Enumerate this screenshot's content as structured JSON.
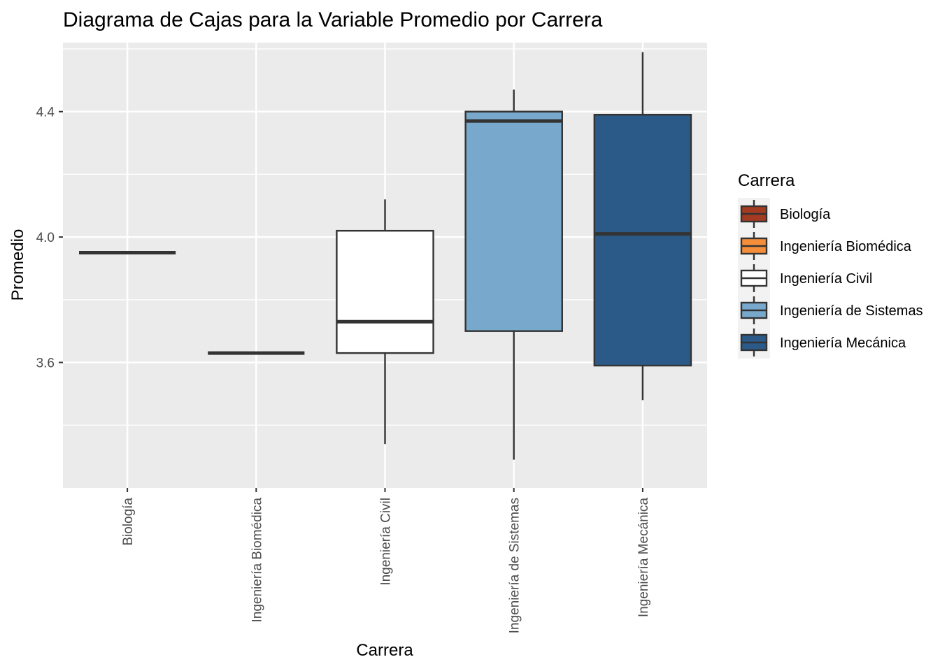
{
  "chart_data": {
    "type": "boxplot",
    "title": "Diagrama de Cajas para la Variable Promedio por Carrera",
    "xlabel": "Carrera",
    "ylabel": "Promedio",
    "ylim": [
      3.2,
      4.62
    ],
    "y_ticks": [
      3.6,
      4.0,
      4.4
    ],
    "y_tick_labels": [
      "3.6",
      "4.0",
      "4.4"
    ],
    "y_minor_ticks": [
      3.4,
      3.8,
      4.2,
      4.6
    ],
    "grid": true,
    "legend": {
      "title": "Carrera",
      "position": "right"
    },
    "categories": [
      "Biología",
      "Ingeniería Biomédica",
      "Ingeniería Civil",
      "Ingeniería de Sistemas",
      "Ingeniería Mecánica"
    ],
    "series": [
      {
        "name": "Biología",
        "color": "#A23B22",
        "min": 3.95,
        "q1": 3.95,
        "median": 3.95,
        "q3": 3.95,
        "max": 3.95
      },
      {
        "name": "Ingeniería Biomédica",
        "color": "#F58E3B",
        "min": 3.63,
        "q1": 3.63,
        "median": 3.63,
        "q3": 3.63,
        "max": 3.63
      },
      {
        "name": "Ingeniería Civil",
        "color": "#FFFFFF",
        "min": 3.34,
        "q1": 3.63,
        "median": 3.73,
        "q3": 4.02,
        "max": 4.12
      },
      {
        "name": "Ingeniería de Sistemas",
        "color": "#78A9CC",
        "min": 3.29,
        "q1": 3.7,
        "median": 4.37,
        "q3": 4.4,
        "max": 4.47
      },
      {
        "name": "Ingeniería Mecánica",
        "color": "#2B5A88",
        "min": 3.48,
        "q1": 3.59,
        "median": 4.01,
        "q3": 4.39,
        "max": 4.59
      }
    ]
  }
}
